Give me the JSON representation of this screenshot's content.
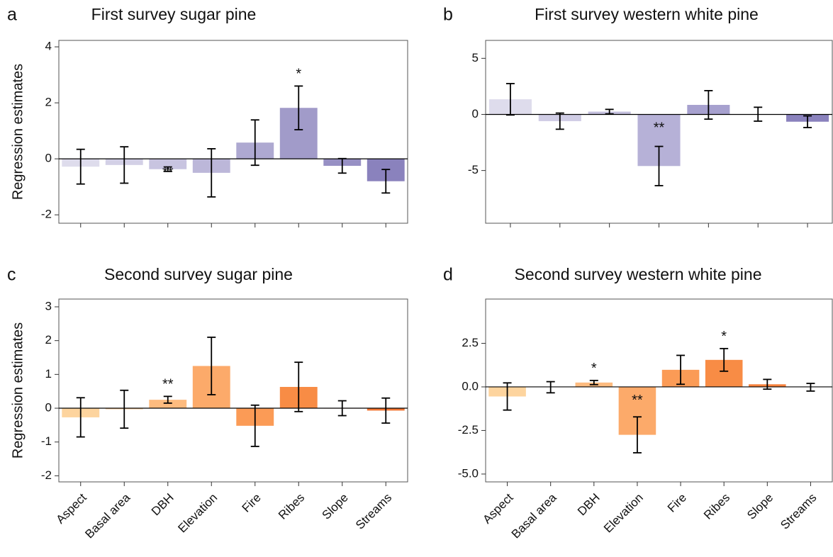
{
  "chart_data": [
    {
      "type": "bar",
      "panel": "a",
      "title": "First survey sugar pine",
      "ylabel": "Regression estimates",
      "categories": [
        null,
        null,
        null,
        null,
        null,
        null,
        null,
        null
      ],
      "values": [
        -0.28,
        -0.22,
        -0.37,
        -0.5,
        0.58,
        1.82,
        -0.25,
        -0.8
      ],
      "errors": [
        0.62,
        0.65,
        0.08,
        0.86,
        0.81,
        0.78,
        0.26,
        0.42
      ],
      "significance": [
        null,
        null,
        "**",
        null,
        null,
        "*",
        null,
        null
      ],
      "colors": [
        "#dedcec",
        "#d3d0e6",
        "#c8c4e0",
        "#bcb7d9",
        "#aea9d1",
        "#a19bc9",
        "#9790c4",
        "#8a82bd"
      ],
      "ylim": [
        -2.3,
        4.23
      ],
      "yticks": [
        -2,
        0,
        2,
        4
      ]
    },
    {
      "type": "bar",
      "panel": "b",
      "title": "First survey western white pine",
      "categories": [
        null,
        null,
        null,
        null,
        null,
        null,
        null
      ],
      "values": [
        1.35,
        -0.6,
        0.25,
        -4.6,
        0.85,
        0.02,
        -0.65
      ],
      "errors": [
        1.4,
        0.72,
        0.2,
        1.75,
        1.27,
        0.62,
        0.52
      ],
      "significance": [
        null,
        null,
        null,
        "**",
        null,
        null,
        null
      ],
      "colors": [
        "#dedcec",
        "#d0cde5",
        "#c5c1df",
        "#b6b1d7",
        "#a7a1cf",
        "#9790c4",
        "#8a82bd"
      ],
      "ylim": [
        -9.7,
        6.6
      ],
      "yticks": [
        -5,
        0,
        5
      ]
    },
    {
      "type": "bar",
      "panel": "c",
      "title": "Second survey sugar pine",
      "ylabel": "Regression estimates",
      "categories": [
        "Aspect",
        "Basal area",
        "DBH",
        "Elevation",
        "Fire",
        "Ribes",
        "Slope",
        "Streams"
      ],
      "values": [
        -0.27,
        -0.03,
        0.25,
        1.25,
        -0.52,
        0.63,
        0,
        -0.07
      ],
      "errors": [
        0.58,
        0.56,
        0.1,
        0.85,
        0.61,
        0.73,
        0.22,
        0.37
      ],
      "significance": [
        null,
        null,
        "**",
        null,
        null,
        null,
        null,
        null
      ],
      "colors": [
        "#fdd49e",
        "#fdc890",
        "#fdbb7f",
        "#fcaa6a",
        "#fb9b56",
        "#f88c45",
        "#f6823d",
        "#f27634"
      ],
      "ylim": [
        -2.18,
        3.23
      ],
      "yticks": [
        -2,
        -1,
        0,
        1,
        2,
        3
      ]
    },
    {
      "type": "bar",
      "panel": "d",
      "title": "Second survey western white pine",
      "categories": [
        "Aspect",
        "Basal area",
        "DBH",
        "Elevation",
        "Fire",
        "Ribes",
        "Slope",
        "Streams"
      ],
      "values": [
        -0.55,
        -0.02,
        0.25,
        -2.75,
        0.98,
        1.55,
        0.15,
        -0.02
      ],
      "errors": [
        0.78,
        0.32,
        0.12,
        1.03,
        0.83,
        0.65,
        0.28,
        0.22
      ],
      "significance": [
        null,
        null,
        "*",
        "**",
        null,
        "*",
        null,
        null
      ],
      "colors": [
        "#fdd49e",
        "#fdc890",
        "#fdbb7f",
        "#fcaa6a",
        "#fb9b56",
        "#f88c45",
        "#f6823d",
        "#f27634"
      ],
      "ylim": [
        -5.45,
        5.04
      ],
      "yticks": [
        {
          "value": -5,
          "label": "-5.0"
        },
        -2.5,
        {
          "value": 0,
          "label": "0.0"
        },
        2.5
      ]
    }
  ]
}
